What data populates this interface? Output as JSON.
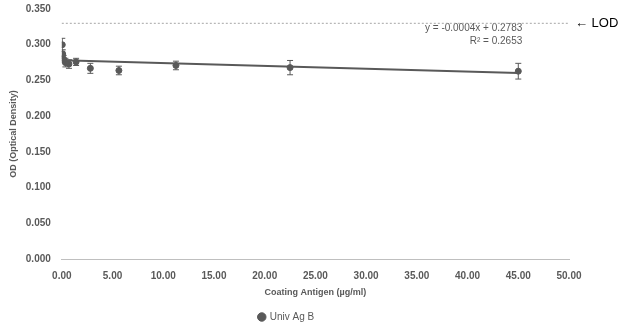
{
  "chart_data": {
    "type": "scatter",
    "xlabel": "Coating Antigen (µg/ml)",
    "ylabel": "OD (Optical Density)",
    "x": [
      0.044,
      0.088,
      0.176,
      0.352,
      0.703,
      1.406,
      2.813,
      5.625,
      11.25,
      22.5,
      45
    ],
    "series": [
      {
        "name": "Univ Ag B",
        "color": "#595959",
        "marker": "circle",
        "values": [
          0.3,
          0.287,
          0.28,
          0.275,
          0.273,
          0.276,
          0.267,
          0.264,
          0.271,
          0.268,
          0.263
        ],
        "errors": [
          0.009,
          0.006,
          0.005,
          0.006,
          0.006,
          0.005,
          0.007,
          0.006,
          0.006,
          0.01,
          0.011
        ]
      }
    ],
    "xlim": [
      0,
      50
    ],
    "xticks": [
      {
        "value": 0,
        "label": "0.00"
      },
      {
        "value": 5,
        "label": "5.00"
      },
      {
        "value": 10,
        "label": "10.00"
      },
      {
        "value": 15,
        "label": "15.00"
      },
      {
        "value": 20,
        "label": "20.00"
      },
      {
        "value": 25,
        "label": "25.00"
      },
      {
        "value": 30,
        "label": "30.00"
      },
      {
        "value": 35,
        "label": "35.00"
      },
      {
        "value": 40,
        "label": "40.00"
      },
      {
        "value": 45,
        "label": "45.00"
      },
      {
        "value": 50,
        "label": "50.00"
      }
    ],
    "ylim": [
      0,
      0.35
    ],
    "yticks": [
      {
        "value": 0,
        "label": "0.000"
      },
      {
        "value": 0.05,
        "label": "0.050"
      },
      {
        "value": 0.1,
        "label": "0.100"
      },
      {
        "value": 0.15,
        "label": "0.150"
      },
      {
        "value": 0.2,
        "label": "0.200"
      },
      {
        "value": 0.25,
        "label": "0.250"
      },
      {
        "value": 0.3,
        "label": "0.300"
      },
      {
        "value": 0.35,
        "label": "0.350"
      }
    ],
    "grid": false,
    "legend": "bottom",
    "trendline": {
      "slope": -0.0004,
      "intercept": 0.2783,
      "equation": "y = -0.0004x + 0.2783",
      "r2_label": "R² = 0.2653"
    },
    "annotations": [
      {
        "text": "← LOD",
        "y": 0.33,
        "line_style": "dashed"
      }
    ]
  }
}
